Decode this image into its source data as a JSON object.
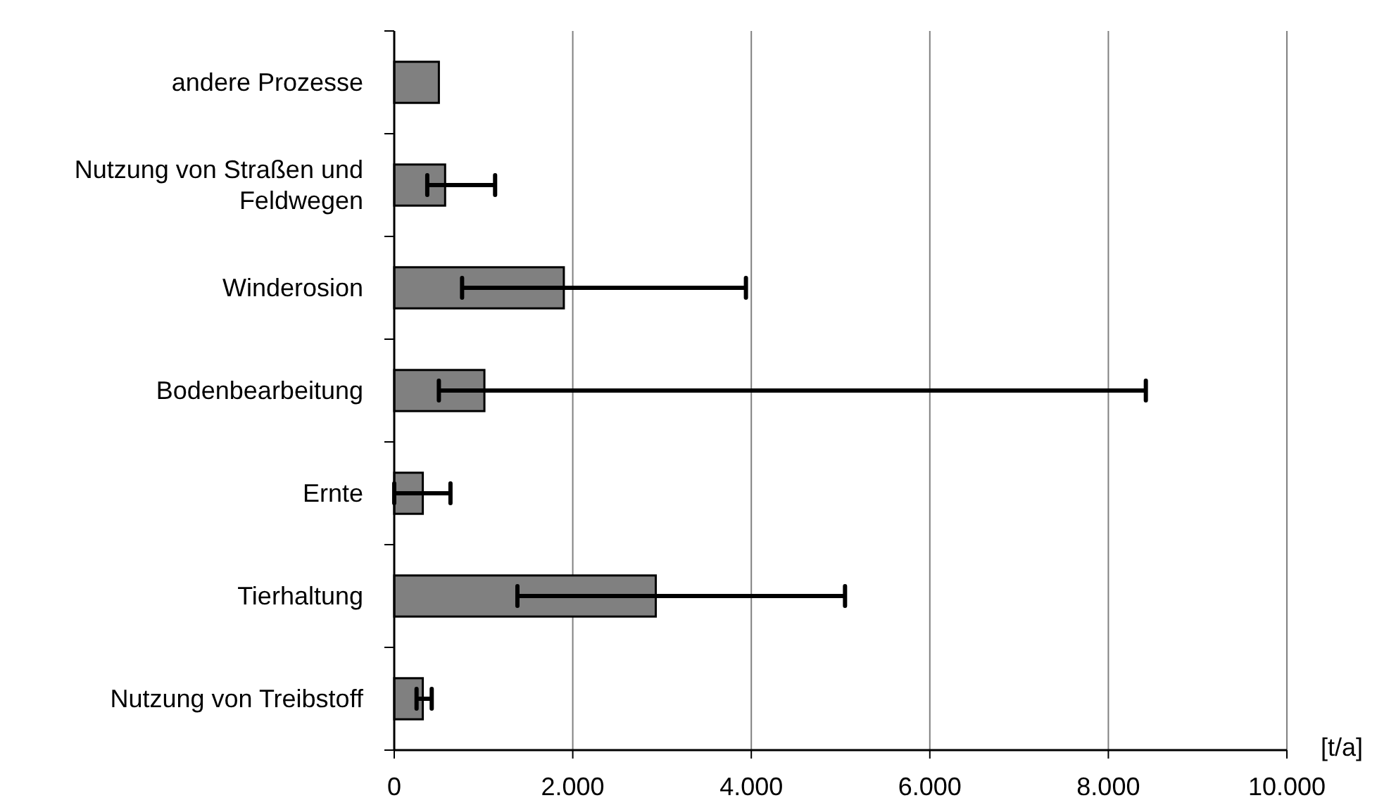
{
  "chart_data": {
    "type": "bar",
    "orientation": "horizontal",
    "xlabel": "[t/a]",
    "categories": [
      "andere Prozesse",
      "Nutzung von Straßen und Feldwegen",
      "Winderosion",
      "Bodenbearbeitung",
      "Ernte",
      "Tierhaltung",
      "Nutzung von Treibstoff"
    ],
    "values": [
      500,
      570,
      1900,
      1010,
      320,
      2930,
      320
    ],
    "errors": [
      null,
      [
        370,
        1130
      ],
      [
        760,
        3940
      ],
      [
        500,
        8420
      ],
      [
        0,
        630
      ],
      [
        1380,
        5050
      ],
      [
        250,
        420
      ]
    ],
    "color": "#808080",
    "xlim": [
      0,
      10000
    ],
    "xticks": [
      {
        "value": 0,
        "label": "0"
      },
      {
        "value": 2000,
        "label": "2.000"
      },
      {
        "value": 4000,
        "label": "4.000"
      },
      {
        "value": 6000,
        "label": "6.000"
      },
      {
        "value": 8000,
        "label": "8.000"
      },
      {
        "value": 10000,
        "label": "10.000"
      }
    ],
    "grid": "x"
  }
}
